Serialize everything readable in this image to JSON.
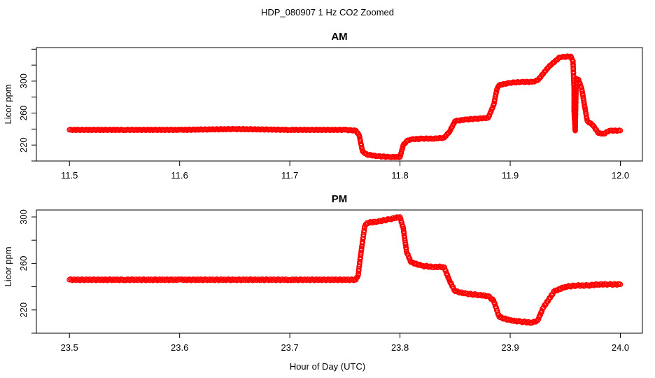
{
  "title": "HDP_080907  1 Hz CO2 Zoomed",
  "xlabel": "Hour of Day (UTC)",
  "colors": {
    "points": "#ff0000",
    "axis": "#000000"
  },
  "chart_data": [
    {
      "type": "scatter",
      "title": "AM",
      "xlabel": "Hour of Day (UTC)",
      "ylabel": "Licor ppm",
      "xlim": [
        11.47,
        12.02
      ],
      "ylim": [
        200,
        342
      ],
      "xticks": [
        "11.5",
        "11.6",
        "11.7",
        "11.8",
        "11.9",
        "12.0"
      ],
      "yticks": [
        "220",
        "260",
        "300"
      ],
      "series": [
        {
          "x": [
            11.5,
            11.55,
            11.6,
            11.65,
            11.7,
            11.75,
            11.76,
            11.763,
            11.766,
            11.77,
            11.78,
            11.79,
            11.8,
            11.803,
            11.807,
            11.81,
            11.82,
            11.83,
            11.84,
            11.845,
            11.85,
            11.86,
            11.87,
            11.88,
            11.885,
            11.888,
            11.89,
            11.9,
            11.91,
            11.92,
            11.925,
            11.935,
            11.945,
            11.955,
            11.957,
            11.958,
            11.958,
            11.959,
            11.96,
            11.962,
            11.965,
            11.968,
            11.97,
            11.975,
            11.98,
            11.985,
            11.99,
            12.0
          ],
          "y": [
            239,
            239,
            239,
            240,
            239,
            239,
            238,
            232,
            212,
            208,
            206,
            205,
            205,
            220,
            226,
            227,
            228,
            228,
            229,
            237,
            250,
            252,
            253,
            254,
            270,
            290,
            295,
            298,
            299,
            299,
            301,
            318,
            330,
            331,
            325,
            290,
            262,
            238,
            303,
            302,
            290,
            265,
            250,
            245,
            235,
            234,
            238,
            238
          ]
        }
      ]
    },
    {
      "type": "scatter",
      "title": "PM",
      "xlabel": "Hour of Day (UTC)",
      "ylabel": "Licor ppm",
      "xlim": [
        23.47,
        24.02
      ],
      "ylim": [
        200,
        306
      ],
      "xticks": [
        "23.5",
        "23.6",
        "23.7",
        "23.8",
        "23.9",
        "24.0"
      ],
      "yticks": [
        "220",
        "260",
        "300"
      ],
      "series": [
        {
          "x": [
            23.5,
            23.55,
            23.6,
            23.65,
            23.7,
            23.76,
            23.762,
            23.765,
            23.768,
            23.77,
            23.78,
            23.79,
            23.8,
            23.803,
            23.806,
            23.81,
            23.82,
            23.83,
            23.84,
            23.845,
            23.85,
            23.86,
            23.87,
            23.88,
            23.885,
            23.89,
            23.9,
            23.91,
            23.92,
            23.925,
            23.93,
            23.94,
            23.95,
            23.96,
            23.97,
            23.98,
            23.99,
            24.0
          ],
          "y": [
            246,
            246,
            246,
            246,
            246,
            246,
            250,
            272,
            292,
            295,
            296,
            298,
            300,
            290,
            270,
            261,
            258,
            257,
            257,
            245,
            236,
            234,
            233,
            232,
            228,
            214,
            211,
            210,
            209,
            211,
            222,
            236,
            240,
            241,
            241,
            242,
            242,
            242
          ]
        }
      ]
    }
  ]
}
